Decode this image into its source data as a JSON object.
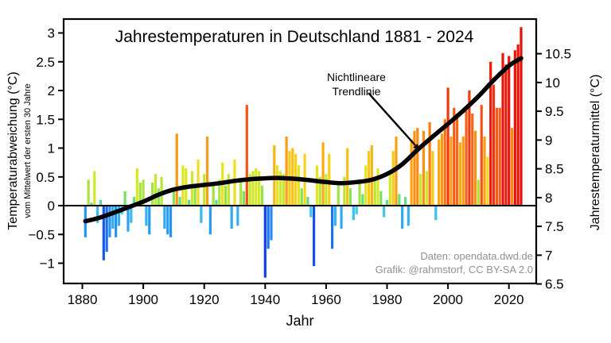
{
  "chart_data": {
    "type": "bar",
    "title": "Jahrestemperaturen in Deutschland 1881 - 2024",
    "xlabel": "Jahr",
    "ylabel_left": "Temperaturabweichung (°C)",
    "ylabel_left_sub": "vom Mittelwert der ersten 30 Jahre",
    "ylabel_right": "Jahrestemperaturmittel (°C)",
    "annotation": {
      "line1": "Nichtlineare",
      "line2": "Trendlinie"
    },
    "credit_line1": "Daten: opendata.dwd.de",
    "credit_line2": "Grafik: @rahmstorf, CC BY-SA 2.0",
    "baseline_C": 7.86,
    "x_ticks": [
      1880,
      1900,
      1920,
      1940,
      1960,
      1980,
      2000,
      2020
    ],
    "y_ticks_left": [
      3,
      2.5,
      2,
      1.5,
      1,
      0.5,
      0,
      -0.5,
      -1
    ],
    "y_ticks_right": [
      10.5,
      10,
      9.5,
      9,
      8.5,
      8,
      7.5,
      7,
      6.5
    ],
    "ylim_left": [
      -1.34,
      3.24
    ],
    "xlim": [
      1873.9,
      2028.9
    ],
    "grid": false,
    "years_start": 1881,
    "years_end": 2024,
    "anomalies": [
      -0.55,
      0.45,
      0.05,
      0.6,
      -0.3,
      0.1,
      -0.95,
      -0.8,
      -0.55,
      -0.4,
      -0.55,
      -0.35,
      -0.15,
      0.25,
      -0.45,
      -0.3,
      0.15,
      0.65,
      0.4,
      0.45,
      -0.35,
      -0.5,
      0.4,
      0.55,
      0.3,
      0.5,
      -0.4,
      -0.5,
      -0.55,
      0.3,
      1.25,
      0.15,
      0.7,
      0.65,
      0.1,
      0.6,
      0.35,
      0.8,
      -0.3,
      0.55,
      1.2,
      -0.5,
      0.4,
      0.1,
      0.45,
      0.75,
      0.35,
      0.55,
      -0.4,
      0.8,
      -0.35,
      0.45,
      0.25,
      1.75,
      0.55,
      0.6,
      0.65,
      0.6,
      0.35,
      -1.25,
      -0.75,
      -0.6,
      1.05,
      0.7,
      0.6,
      0.55,
      1.2,
      0.95,
      1.0,
      0.9,
      0.7,
      0.3,
      0.9,
      0.15,
      -0.2,
      -1.05,
      0.7,
      0.5,
      1.1,
      0.55,
      0.9,
      -0.75,
      -0.35,
      0.4,
      -0.4,
      0.5,
      1.0,
      0.3,
      -0.25,
      -0.15,
      0.4,
      0.2,
      0.7,
      0.95,
      1.05,
      0.5,
      0.65,
      0.25,
      -0.2,
      0.1,
      0.6,
      0.95,
      1.2,
      0.2,
      -0.4,
      0.15,
      -0.35,
      1.15,
      1.3,
      1.35,
      0.55,
      1.3,
      0.6,
      1.45,
      0.95,
      -0.25,
      1.15,
      1.25,
      1.5,
      2.05,
      1.2,
      1.7,
      1.6,
      1.1,
      1.2,
      1.65,
      2.0,
      1.6,
      1.3,
      0.45,
      1.75,
      1.2,
      0.85,
      2.5,
      2.1,
      1.7,
      1.7,
      2.65,
      2.45,
      2.6,
      1.35,
      2.7,
      2.8,
      3.1
    ],
    "trend": [
      [
        1881,
        -0.27
      ],
      [
        1885,
        -0.22
      ],
      [
        1890,
        -0.13
      ],
      [
        1895,
        -0.03
      ],
      [
        1900,
        0.07
      ],
      [
        1905,
        0.19
      ],
      [
        1910,
        0.28
      ],
      [
        1915,
        0.33
      ],
      [
        1920,
        0.36
      ],
      [
        1925,
        0.39
      ],
      [
        1930,
        0.43
      ],
      [
        1935,
        0.46
      ],
      [
        1940,
        0.475
      ],
      [
        1945,
        0.48
      ],
      [
        1950,
        0.465
      ],
      [
        1955,
        0.44
      ],
      [
        1960,
        0.41
      ],
      [
        1965,
        0.39
      ],
      [
        1970,
        0.41
      ],
      [
        1975,
        0.45
      ],
      [
        1980,
        0.55
      ],
      [
        1985,
        0.72
      ],
      [
        1990,
        0.97
      ],
      [
        1995,
        1.2
      ],
      [
        2000,
        1.42
      ],
      [
        2005,
        1.65
      ],
      [
        2010,
        1.9
      ],
      [
        2015,
        2.18
      ],
      [
        2020,
        2.43
      ],
      [
        2024,
        2.56
      ]
    ],
    "colormap_stops": [
      [
        -1.3,
        "#0f3de6"
      ],
      [
        -0.95,
        "#1857ec"
      ],
      [
        -0.7,
        "#1f7df2"
      ],
      [
        -0.45,
        "#2ba1f2"
      ],
      [
        -0.25,
        "#38c2f0"
      ],
      [
        -0.08,
        "#3fd7cf"
      ],
      [
        0.05,
        "#47dda4"
      ],
      [
        0.18,
        "#63e076"
      ],
      [
        0.32,
        "#8ce24e"
      ],
      [
        0.48,
        "#b2e535"
      ],
      [
        0.62,
        "#d4e827"
      ],
      [
        0.78,
        "#efe11e"
      ],
      [
        0.92,
        "#f9cf19"
      ],
      [
        1.08,
        "#f9ae15"
      ],
      [
        1.28,
        "#f99313"
      ],
      [
        1.5,
        "#f87413"
      ],
      [
        1.7,
        "#f65916"
      ],
      [
        1.95,
        "#f24013"
      ],
      [
        2.2,
        "#ee2a0f"
      ],
      [
        2.6,
        "#eb150b"
      ],
      [
        3.1,
        "#ea0d08"
      ]
    ],
    "trend_color": "#000000",
    "frame_color": "#000000"
  }
}
